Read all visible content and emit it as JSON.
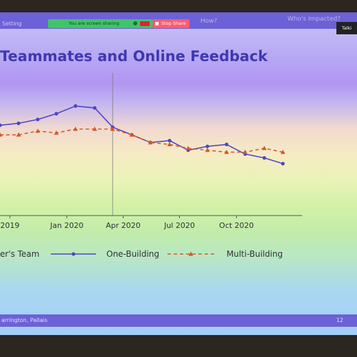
{
  "toolbar": {
    "left_label": "Setting",
    "sharing_label": "You are screen sharing",
    "stop_label": "Stop Share",
    "how_label": "How?",
    "who_label": "Who's Impacted?",
    "talk_label": "Talki"
  },
  "slide": {
    "title": "Teammates and Online Feedback",
    "footer_left": "arrington, Pallais",
    "page_number": "12"
  },
  "colors": {
    "one_building": "#4b46c4",
    "multi_building": "#d25a2b",
    "title": "#3f38b2",
    "bar": "#6c61d6"
  },
  "chart_data": {
    "type": "line",
    "x_tick_labels": [
      "2019",
      "Jan 2020",
      "Apr 2020",
      "Jul 2020",
      "Oct 2020"
    ],
    "x_tick_dates": [
      "2019-10",
      "2020-01",
      "2020-04",
      "2020-07",
      "2020-10"
    ],
    "x_range": [
      "2019-09-15",
      "2021-01-15"
    ],
    "y_range": [
      0.45,
      1.15
    ],
    "reference_line_date": "2020-03-15",
    "grid": false,
    "legend_placement": "bottom",
    "legend_partial_text": "er's Team",
    "x": [
      "2019-09-15",
      "2019-10-15",
      "2019-11-15",
      "2019-12-15",
      "2020-01-15",
      "2020-02-15",
      "2020-03-15",
      "2020-04-15",
      "2020-05-15",
      "2020-06-15",
      "2020-07-15",
      "2020-08-15",
      "2020-09-15",
      "2020-10-15",
      "2020-11-15",
      "2020-12-15"
    ],
    "series": [
      {
        "name": "One-Building",
        "style": "solid",
        "marker": "circle",
        "values": [
          0.92,
          0.93,
          0.95,
          0.98,
          1.02,
          1.01,
          0.91,
          0.87,
          0.83,
          0.84,
          0.79,
          0.81,
          0.82,
          0.77,
          0.75,
          0.72
        ]
      },
      {
        "name": "Multi-Building",
        "style": "dashed",
        "marker": "triangle",
        "values": [
          0.87,
          0.87,
          0.89,
          0.88,
          0.9,
          0.9,
          0.9,
          0.87,
          0.83,
          0.82,
          0.8,
          0.79,
          0.78,
          0.78,
          0.8,
          0.78
        ]
      }
    ]
  }
}
